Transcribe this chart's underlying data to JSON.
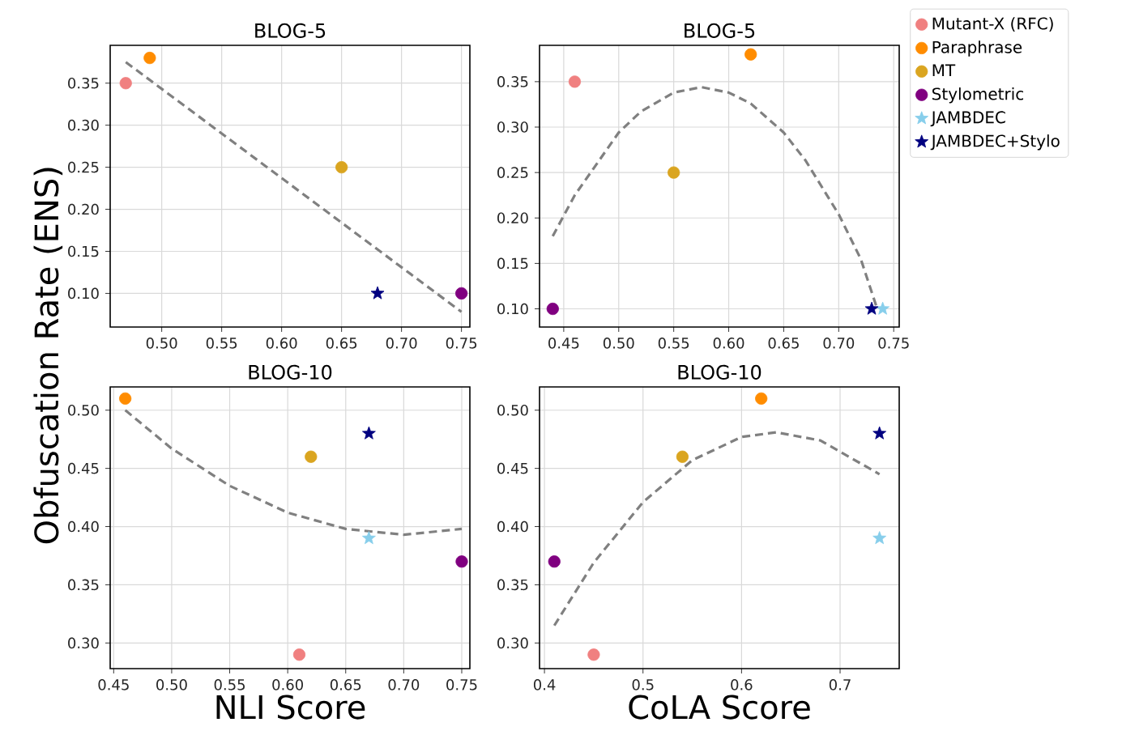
{
  "chart_data": [
    {
      "type": "scatter",
      "title": "BLOG-5",
      "ylabel": "Obfuscation Rate (ENS)",
      "grid": true,
      "xlim": [
        0.457,
        0.757
      ],
      "ylim": [
        0.06,
        0.395
      ],
      "xticks": [
        {
          "value": 0.5,
          "label": "0.50"
        },
        {
          "value": 0.55,
          "label": "0.55"
        },
        {
          "value": 0.6,
          "label": "0.60"
        },
        {
          "value": 0.65,
          "label": "0.65"
        },
        {
          "value": 0.7,
          "label": "0.70"
        },
        {
          "value": 0.75,
          "label": "0.75"
        }
      ],
      "yticks": [
        {
          "value": 0.1,
          "label": "0.10"
        },
        {
          "value": 0.15,
          "label": "0.15"
        },
        {
          "value": 0.2,
          "label": "0.20"
        },
        {
          "value": 0.25,
          "label": "0.25"
        },
        {
          "value": 0.3,
          "label": "0.30"
        },
        {
          "value": 0.35,
          "label": "0.35"
        }
      ],
      "series": [
        {
          "color": "#f08080",
          "marker": "circle",
          "x": [
            0.47
          ],
          "values": [
            0.35
          ]
        },
        {
          "color": "#ff8c00",
          "marker": "circle",
          "x": [
            0.49
          ],
          "values": [
            0.38
          ]
        },
        {
          "color": "#daa520",
          "marker": "circle",
          "x": [
            0.65
          ],
          "values": [
            0.25
          ]
        },
        {
          "color": "#800080",
          "marker": "circle",
          "x": [
            0.75
          ],
          "values": [
            0.1
          ]
        },
        {
          "color": "#000080",
          "marker": "star",
          "x": [
            0.68
          ],
          "values": [
            0.1
          ]
        },
        {
          "type": "line",
          "color": "#808080",
          "marker": "none",
          "line_style": "dashed",
          "x": [
            0.47,
            0.75
          ],
          "values": [
            0.375,
            0.078
          ]
        }
      ]
    },
    {
      "type": "scatter",
      "title": "BLOG-5",
      "grid": true,
      "legend": "right",
      "xlim": [
        0.428,
        0.755
      ],
      "ylim": [
        0.08,
        0.39
      ],
      "xticks": [
        {
          "value": 0.45,
          "label": "0.45"
        },
        {
          "value": 0.5,
          "label": "0.50"
        },
        {
          "value": 0.55,
          "label": "0.55"
        },
        {
          "value": 0.6,
          "label": "0.60"
        },
        {
          "value": 0.65,
          "label": "0.65"
        },
        {
          "value": 0.7,
          "label": "0.70"
        },
        {
          "value": 0.75,
          "label": "0.75"
        }
      ],
      "yticks": [
        {
          "value": 0.1,
          "label": "0.10"
        },
        {
          "value": 0.15,
          "label": "0.15"
        },
        {
          "value": 0.2,
          "label": "0.20"
        },
        {
          "value": 0.25,
          "label": "0.25"
        },
        {
          "value": 0.3,
          "label": "0.30"
        },
        {
          "value": 0.35,
          "label": "0.35"
        }
      ],
      "series": [
        {
          "name": "Mutant-X (RFC)",
          "color": "#f08080",
          "marker": "circle",
          "x": [
            0.46
          ],
          "values": [
            0.35
          ]
        },
        {
          "name": "Paraphrase",
          "color": "#ff8c00",
          "marker": "circle",
          "x": [
            0.62
          ],
          "values": [
            0.38
          ]
        },
        {
          "name": "MT",
          "color": "#daa520",
          "marker": "circle",
          "x": [
            0.55
          ],
          "values": [
            0.25
          ]
        },
        {
          "name": "Stylometric",
          "color": "#800080",
          "marker": "circle",
          "x": [
            0.44
          ],
          "values": [
            0.1
          ]
        },
        {
          "name": "JAMBDEC",
          "color": "#87ceeb",
          "marker": "star",
          "x": [
            0.74
          ],
          "values": [
            0.1
          ]
        },
        {
          "name": "JAMBDEC+Stylo",
          "color": "#000080",
          "marker": "star",
          "x": [
            0.73
          ],
          "values": [
            0.1
          ]
        },
        {
          "type": "line",
          "color": "#808080",
          "marker": "none",
          "line_style": "dashed",
          "x": [
            0.44,
            0.46,
            0.5,
            0.52,
            0.55,
            0.575,
            0.6,
            0.62,
            0.65,
            0.67,
            0.7,
            0.72,
            0.735
          ],
          "values": [
            0.18,
            0.225,
            0.294,
            0.317,
            0.338,
            0.344,
            0.338,
            0.326,
            0.294,
            0.263,
            0.204,
            0.155,
            0.1
          ]
        }
      ]
    },
    {
      "type": "scatter",
      "title": "BLOG-10",
      "xlabel": "NLI Score",
      "grid": true,
      "xlim": [
        0.447,
        0.757
      ],
      "ylim": [
        0.278,
        0.52
      ],
      "xticks": [
        {
          "value": 0.45,
          "label": "0.45"
        },
        {
          "value": 0.5,
          "label": "0.50"
        },
        {
          "value": 0.55,
          "label": "0.55"
        },
        {
          "value": 0.6,
          "label": "0.60"
        },
        {
          "value": 0.65,
          "label": "0.65"
        },
        {
          "value": 0.7,
          "label": "0.70"
        },
        {
          "value": 0.75,
          "label": "0.75"
        }
      ],
      "yticks": [
        {
          "value": 0.3,
          "label": "0.30"
        },
        {
          "value": 0.35,
          "label": "0.35"
        },
        {
          "value": 0.4,
          "label": "0.40"
        },
        {
          "value": 0.45,
          "label": "0.45"
        },
        {
          "value": 0.5,
          "label": "0.50"
        }
      ],
      "series": [
        {
          "color": "#f08080",
          "marker": "circle",
          "x": [
            0.61
          ],
          "values": [
            0.29
          ]
        },
        {
          "color": "#ff8c00",
          "marker": "circle",
          "x": [
            0.46
          ],
          "values": [
            0.51
          ]
        },
        {
          "color": "#daa520",
          "marker": "circle",
          "x": [
            0.62
          ],
          "values": [
            0.46
          ]
        },
        {
          "color": "#800080",
          "marker": "circle",
          "x": [
            0.75
          ],
          "values": [
            0.37
          ]
        },
        {
          "color": "#87ceeb",
          "marker": "star",
          "x": [
            0.67
          ],
          "values": [
            0.39
          ]
        },
        {
          "color": "#000080",
          "marker": "star",
          "x": [
            0.67
          ],
          "values": [
            0.48
          ]
        },
        {
          "type": "line",
          "color": "#808080",
          "marker": "none",
          "line_style": "dashed",
          "x": [
            0.46,
            0.5,
            0.55,
            0.6,
            0.65,
            0.7,
            0.75
          ],
          "values": [
            0.5,
            0.467,
            0.435,
            0.412,
            0.398,
            0.393,
            0.398
          ]
        }
      ]
    },
    {
      "type": "scatter",
      "title": "BLOG-10",
      "xlabel": "CoLA Score",
      "grid": true,
      "xlim": [
        0.395,
        0.76
      ],
      "ylim": [
        0.278,
        0.52
      ],
      "xticks": [
        0.4,
        0.5,
        0.6,
        0.7
      ],
      "yticks": [
        {
          "value": 0.3,
          "label": "0.30"
        },
        {
          "value": 0.35,
          "label": "0.35"
        },
        {
          "value": 0.4,
          "label": "0.40"
        },
        {
          "value": 0.45,
          "label": "0.45"
        },
        {
          "value": 0.5,
          "label": "0.50"
        }
      ],
      "series": [
        {
          "color": "#f08080",
          "marker": "circle",
          "x": [
            0.45
          ],
          "values": [
            0.29
          ]
        },
        {
          "color": "#ff8c00",
          "marker": "circle",
          "x": [
            0.62
          ],
          "values": [
            0.51
          ]
        },
        {
          "color": "#daa520",
          "marker": "circle",
          "x": [
            0.54
          ],
          "values": [
            0.46
          ]
        },
        {
          "color": "#800080",
          "marker": "circle",
          "x": [
            0.41
          ],
          "values": [
            0.37
          ]
        },
        {
          "color": "#87ceeb",
          "marker": "star",
          "x": [
            0.74
          ],
          "values": [
            0.39
          ]
        },
        {
          "color": "#000080",
          "marker": "star",
          "x": [
            0.74
          ],
          "values": [
            0.48
          ]
        },
        {
          "type": "line",
          "color": "#808080",
          "marker": "none",
          "line_style": "dashed",
          "x": [
            0.41,
            0.45,
            0.5,
            0.55,
            0.6,
            0.635,
            0.68,
            0.74
          ],
          "values": [
            0.315,
            0.369,
            0.421,
            0.457,
            0.477,
            0.481,
            0.474,
            0.445
          ]
        }
      ]
    }
  ]
}
